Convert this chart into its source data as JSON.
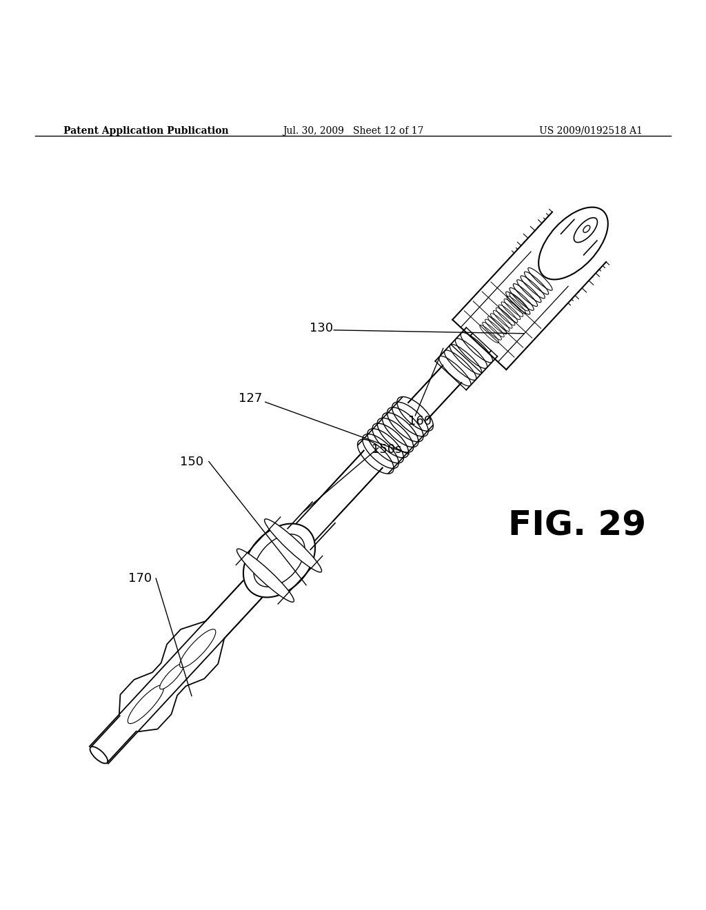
{
  "background_color": "#ffffff",
  "header_left": "Patent Application Publication",
  "header_center": "Jul. 30, 2009   Sheet 12 of 17",
  "header_right": "US 2009/0192518 A1",
  "fig_label": "FIG. 29",
  "label_fontsize": 13,
  "header_fontsize": 10,
  "fig_label_fontsize": 36
}
